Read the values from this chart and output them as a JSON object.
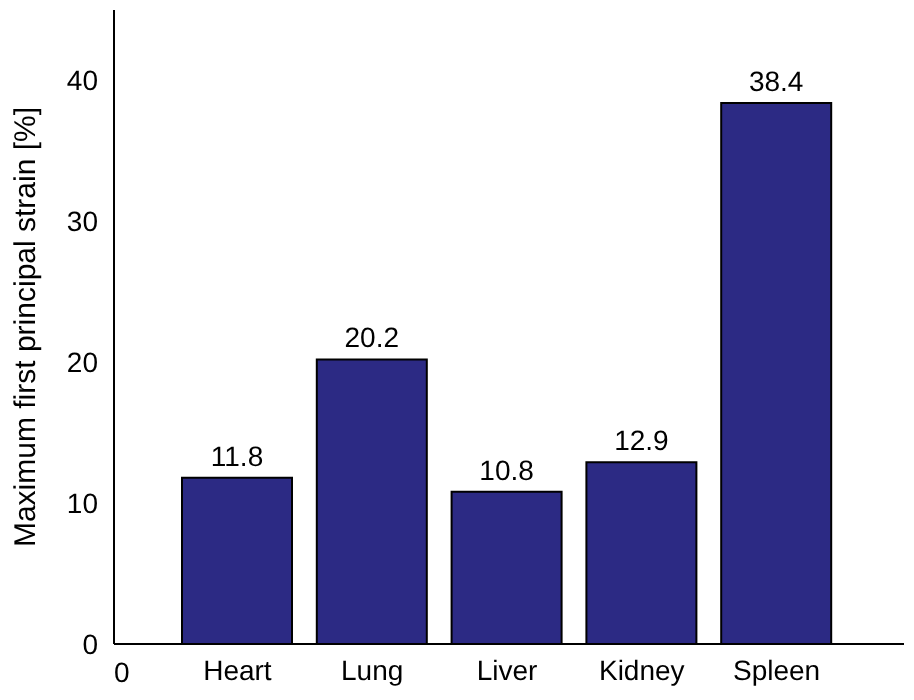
{
  "chart_data": {
    "type": "bar",
    "ylabel": "Maximum first principal strain [%]",
    "categories": [
      "Heart",
      "Lung",
      "Liver",
      "Kidney",
      "Spleen"
    ],
    "values": [
      11.8,
      20.2,
      10.8,
      12.9,
      38.4
    ],
    "color": "#2c2a84",
    "ylim": [
      0,
      45
    ],
    "yticks": [
      0,
      10,
      20,
      30,
      40
    ],
    "data_labels": true,
    "annotations": [
      "0"
    ]
  }
}
